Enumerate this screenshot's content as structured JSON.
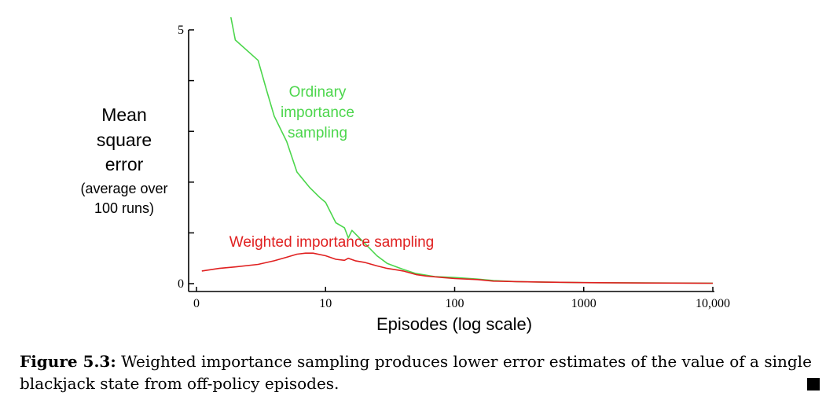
{
  "chart_data": {
    "type": "line",
    "xscale": "log",
    "xlim": [
      1,
      10000
    ],
    "ylim": [
      0,
      5
    ],
    "ylabel_lines": [
      "Mean",
      "square",
      "error",
      "(average over",
      "100 runs)"
    ],
    "xlabel": "Episodes (log scale)",
    "ytick_labels": [
      {
        "value": 0,
        "label": "0"
      },
      {
        "value": 5,
        "label": "5"
      }
    ],
    "yticks_unlabeled": [
      1,
      2,
      3,
      4
    ],
    "xtick_labels": [
      {
        "value": 1,
        "label": "0"
      },
      {
        "value": 10,
        "label": "10"
      },
      {
        "value": 100,
        "label": "100"
      },
      {
        "value": 1000,
        "label": "1000"
      },
      {
        "value": 10000,
        "label": "10,000"
      }
    ],
    "series": [
      {
        "name": "Ordinary importance sampling",
        "label_lines": [
          "Ordinary",
          "importance",
          "sampling"
        ],
        "color": "#4cd64c",
        "points": [
          [
            1.8,
            5.4
          ],
          [
            2,
            4.8
          ],
          [
            3,
            4.4
          ],
          [
            3.5,
            3.8
          ],
          [
            4,
            3.3
          ],
          [
            5,
            2.8
          ],
          [
            6,
            2.2
          ],
          [
            7.5,
            1.9
          ],
          [
            9,
            1.7
          ],
          [
            10,
            1.6
          ],
          [
            12,
            1.2
          ],
          [
            14,
            1.1
          ],
          [
            15,
            0.9
          ],
          [
            16,
            1.05
          ],
          [
            20,
            0.8
          ],
          [
            25,
            0.55
          ],
          [
            30,
            0.4
          ],
          [
            40,
            0.28
          ],
          [
            50,
            0.2
          ],
          [
            70,
            0.14
          ],
          [
            100,
            0.12
          ],
          [
            150,
            0.09
          ],
          [
            200,
            0.06
          ],
          [
            300,
            0.04
          ],
          [
            500,
            0.03
          ],
          [
            1000,
            0.02
          ],
          [
            3000,
            0.015
          ],
          [
            10000,
            0.01
          ]
        ]
      },
      {
        "name": "Weighted importance sampling",
        "label_lines": [
          "Weighted importance sampling"
        ],
        "color": "#e02020",
        "points": [
          [
            1.1,
            0.25
          ],
          [
            1.5,
            0.3
          ],
          [
            2,
            0.33
          ],
          [
            3,
            0.38
          ],
          [
            4,
            0.45
          ],
          [
            5,
            0.52
          ],
          [
            6,
            0.58
          ],
          [
            7,
            0.6
          ],
          [
            8,
            0.6
          ],
          [
            10,
            0.55
          ],
          [
            12,
            0.48
          ],
          [
            14,
            0.46
          ],
          [
            15,
            0.5
          ],
          [
            17,
            0.45
          ],
          [
            20,
            0.42
          ],
          [
            25,
            0.35
          ],
          [
            30,
            0.3
          ],
          [
            40,
            0.25
          ],
          [
            50,
            0.18
          ],
          [
            60,
            0.15
          ],
          [
            80,
            0.12
          ],
          [
            100,
            0.1
          ],
          [
            150,
            0.08
          ],
          [
            200,
            0.05
          ],
          [
            300,
            0.04
          ],
          [
            500,
            0.03
          ],
          [
            1000,
            0.02
          ],
          [
            3000,
            0.012
          ],
          [
            10000,
            0.008
          ]
        ]
      }
    ]
  },
  "caption": {
    "label": "Figure 5.3:",
    "text": " Weighted importance sampling produces lower error estimates of the value of a single blackjack state from off-policy episodes."
  }
}
